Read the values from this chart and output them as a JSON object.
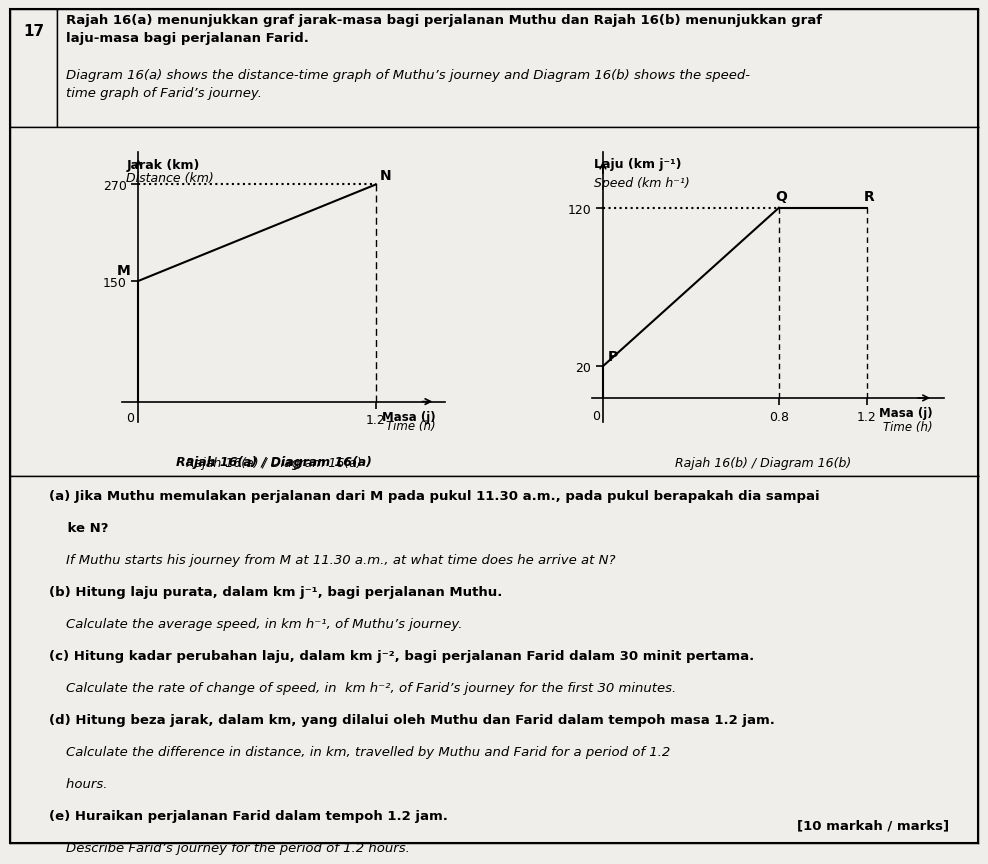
{
  "title_number": "17",
  "header_malay": "Rajah 16(a) menunjukkan graf jarak-masa bagi perjalanan Muthu dan Rajah 16(b) menunjukkan graf\nlaju-masa bagi perjalanan Farid.",
  "header_english": "Diagram 16(a) shows the distance-time graph of Muthu’s journey and Diagram 16(b) shows the speed-\ntime graph of Farid’s journey.",
  "graph_a_ylabel_malay": "Jarak (km)",
  "graph_a_ylabel_english": "Distance (km)",
  "graph_a_xlabel_malay": "Masa (j)",
  "graph_a_xlabel_english": "Time (h)",
  "graph_a_caption": "Rajah 16(a) / Diagram 16(a)",
  "graph_a_yticks": [
    150,
    270
  ],
  "graph_a_xtick": 1.2,
  "graph_a_M": [
    0,
    150
  ],
  "graph_a_N": [
    1.2,
    270
  ],
  "graph_b_ylabel_malay": "Laju (km j⁻¹)",
  "graph_b_ylabel_english": "Speed (km h⁻¹)",
  "graph_b_xlabel_malay": "Masa (j)",
  "graph_b_xlabel_english": "Time (h)",
  "graph_b_caption": "Rajah 16(b) / Diagram 16(b)",
  "graph_b_yticks": [
    20,
    120
  ],
  "graph_b_xticks": [
    0.8,
    1.2
  ],
  "graph_b_P": [
    0,
    20
  ],
  "graph_b_Q": [
    0.8,
    120
  ],
  "graph_b_R": [
    1.2,
    120
  ],
  "q_a_malay": "(a) Jika Muthu memulakan perjalanan dari M pada pukul 11.30 a.m., pada pukul berapakah dia sampai",
  "q_a_malay2": "    ke N?",
  "q_a_english": "    If Muthu starts his journey from M at 11.30 a.m., at what time does he arrive at N?",
  "q_b_malay": "(b) Hitung laju purata, dalam km j⁻¹, bagi perjalanan Muthu.",
  "q_b_english": "    Calculate the average speed, in km h⁻¹, of Muthu’s journey.",
  "q_c_malay": "(c) Hitung kadar perubahan laju, dalam km j⁻², bagi perjalanan Farid dalam 30 minit pertama.",
  "q_c_english": "    Calculate the rate of change of speed, in  km h⁻², of Farid’s journey for the first 30 minutes.",
  "q_d_malay": "(d) Hitung beza jarak, dalam km, yang dilalui oleh Muthu dan Farid dalam tempoh masa 1.2 jam.",
  "q_d_english": "    Calculate the difference in distance, in km, travelled by Muthu and Farid for a period of 1.2",
  "q_d_english2": "    hours.",
  "q_e_malay": "(e) Huraikan perjalanan Farid dalam tempoh 1.2 jam.",
  "q_e_english": "    Describe Farid’s journey for the period of 1.2 hours.",
  "footer": "[10 markah / marks]",
  "bg_color": "#f0eeeb"
}
